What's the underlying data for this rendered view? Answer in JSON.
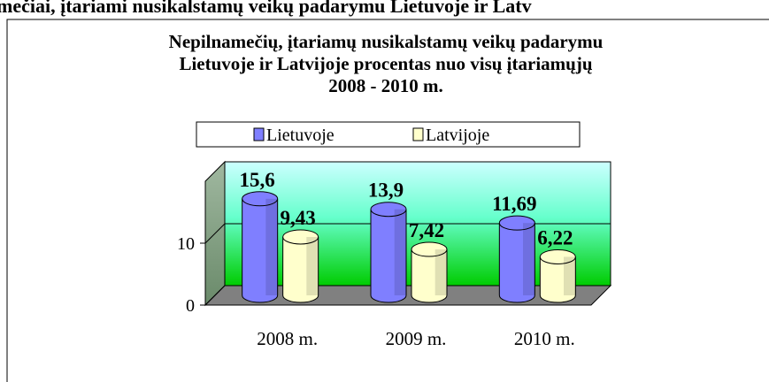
{
  "heading": "mečiai, įtariami nusikalstamų veikų padarymu Lietuvoje ir Latv",
  "chart_data": {
    "type": "bar",
    "title": [
      "Nepilnamečių, įtariamų nusikalstamų veikų padarymu",
      "Lietuvoje ir Latvijoje procentas nuo visų įtariamųjų",
      "2008 - 2010 m."
    ],
    "categories": [
      "2008 m.",
      "2009 m.",
      "2010 m."
    ],
    "series": [
      {
        "name": "Lietuvoje",
        "color": "#7f7fff",
        "values": [
          15.6,
          13.9,
          11.69
        ],
        "value_labels": [
          "15,6",
          "13,9",
          "11,69"
        ]
      },
      {
        "name": "Latvijoje",
        "color": "#ffffcc",
        "values": [
          9.43,
          7.42,
          6.22
        ],
        "value_labels": [
          "9,43",
          "7,42",
          "6,22"
        ]
      }
    ],
    "ylim": [
      0,
      20
    ],
    "yticks": [
      0,
      10
    ],
    "grid": true,
    "legend": "top"
  }
}
